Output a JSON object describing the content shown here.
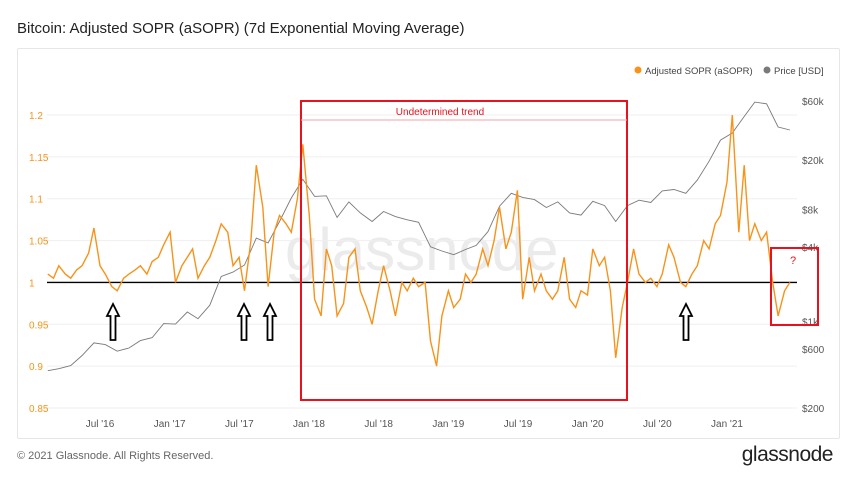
{
  "title": "Bitcoin: Adjusted SOPR (aSOPR) (7d Exponential Moving Average)",
  "footer": "© 2021 Glassnode. All Rights Reserved.",
  "logo": "glassnode",
  "watermark": "glassnode",
  "annotations": {
    "box_label": "Undetermined trend",
    "question": "?",
    "color": "#e8121e"
  },
  "chart_data": {
    "type": "line",
    "legend_position": "top-right",
    "grid": true,
    "reference_line": 1,
    "x_ticks": [
      "Jul '16",
      "Jan '17",
      "Jul '17",
      "Jan '18",
      "Jul '18",
      "Jan '19",
      "Jul '19",
      "Jan '20",
      "Jul '20",
      "Jan '21"
    ],
    "y_left": {
      "ticks": [
        "1.2",
        "1.15",
        "1.1",
        "1.05",
        "1",
        "0.95",
        "0.9",
        "0.85"
      ],
      "range": [
        0.85,
        1.2
      ],
      "color": "#f7931a"
    },
    "y_right": {
      "scale": "log",
      "ticks": [
        "$60k",
        "$20k",
        "$8k",
        "$4k",
        "$1k",
        "$600",
        "$200"
      ],
      "range": [
        200,
        60000
      ]
    },
    "series": [
      {
        "name": "Adjusted SOPR (aSOPR)",
        "color": "#f7931a",
        "axis": "left",
        "points": [
          [
            "2016-02-15",
            1.01
          ],
          [
            "2016-03-01",
            1.005
          ],
          [
            "2016-03-15",
            1.02
          ],
          [
            "2016-04-01",
            1.01
          ],
          [
            "2016-04-15",
            1.005
          ],
          [
            "2016-05-01",
            1.015
          ],
          [
            "2016-05-15",
            1.02
          ],
          [
            "2016-06-01",
            1.035
          ],
          [
            "2016-06-15",
            1.065
          ],
          [
            "2016-07-01",
            1.02
          ],
          [
            "2016-07-15",
            1.01
          ],
          [
            "2016-08-01",
            0.995
          ],
          [
            "2016-08-15",
            0.99
          ],
          [
            "2016-09-01",
            1.005
          ],
          [
            "2016-09-15",
            1.01
          ],
          [
            "2016-10-01",
            1.015
          ],
          [
            "2016-10-15",
            1.02
          ],
          [
            "2016-11-01",
            1.01
          ],
          [
            "2016-11-15",
            1.025
          ],
          [
            "2016-12-01",
            1.03
          ],
          [
            "2016-12-15",
            1.045
          ],
          [
            "2017-01-01",
            1.06
          ],
          [
            "2017-01-15",
            1.0
          ],
          [
            "2017-02-01",
            1.02
          ],
          [
            "2017-02-15",
            1.03
          ],
          [
            "2017-03-01",
            1.04
          ],
          [
            "2017-03-15",
            1.005
          ],
          [
            "2017-04-01",
            1.02
          ],
          [
            "2017-04-15",
            1.03
          ],
          [
            "2017-05-01",
            1.05
          ],
          [
            "2017-05-15",
            1.07
          ],
          [
            "2017-06-01",
            1.06
          ],
          [
            "2017-06-15",
            1.02
          ],
          [
            "2017-07-01",
            1.03
          ],
          [
            "2017-07-15",
            0.99
          ],
          [
            "2017-08-01",
            1.05
          ],
          [
            "2017-08-15",
            1.14
          ],
          [
            "2017-09-01",
            1.09
          ],
          [
            "2017-09-15",
            0.995
          ],
          [
            "2017-10-01",
            1.06
          ],
          [
            "2017-10-15",
            1.08
          ],
          [
            "2017-11-01",
            1.07
          ],
          [
            "2017-11-15",
            1.06
          ],
          [
            "2017-12-01",
            1.1
          ],
          [
            "2017-12-15",
            1.165
          ],
          [
            "2018-01-01",
            1.08
          ],
          [
            "2018-01-15",
            0.98
          ],
          [
            "2018-02-01",
            0.96
          ],
          [
            "2018-02-15",
            1.04
          ],
          [
            "2018-03-01",
            1.02
          ],
          [
            "2018-03-15",
            0.96
          ],
          [
            "2018-04-01",
            0.975
          ],
          [
            "2018-04-15",
            1.03
          ],
          [
            "2018-05-01",
            1.04
          ],
          [
            "2018-05-15",
            0.99
          ],
          [
            "2018-06-01",
            0.97
          ],
          [
            "2018-06-15",
            0.95
          ],
          [
            "2018-07-01",
            0.99
          ],
          [
            "2018-07-15",
            1.02
          ],
          [
            "2018-08-01",
            0.99
          ],
          [
            "2018-08-15",
            0.96
          ],
          [
            "2018-09-01",
            1.0
          ],
          [
            "2018-09-15",
            0.99
          ],
          [
            "2018-10-01",
            1.005
          ],
          [
            "2018-10-15",
            0.995
          ],
          [
            "2018-11-01",
            1.0
          ],
          [
            "2018-11-15",
            0.93
          ],
          [
            "2018-12-01",
            0.9
          ],
          [
            "2018-12-15",
            0.96
          ],
          [
            "2019-01-01",
            0.99
          ],
          [
            "2019-01-15",
            0.97
          ],
          [
            "2019-02-01",
            0.98
          ],
          [
            "2019-02-15",
            1.01
          ],
          [
            "2019-03-01",
            1.0
          ],
          [
            "2019-03-15",
            1.01
          ],
          [
            "2019-04-01",
            1.04
          ],
          [
            "2019-04-15",
            1.02
          ],
          [
            "2019-05-01",
            1.05
          ],
          [
            "2019-05-15",
            1.09
          ],
          [
            "2019-06-01",
            1.04
          ],
          [
            "2019-06-15",
            1.06
          ],
          [
            "2019-07-01",
            1.11
          ],
          [
            "2019-07-15",
            0.98
          ],
          [
            "2019-08-01",
            1.03
          ],
          [
            "2019-08-15",
            0.99
          ],
          [
            "2019-09-01",
            1.01
          ],
          [
            "2019-09-15",
            0.99
          ],
          [
            "2019-10-01",
            0.98
          ],
          [
            "2019-10-15",
            0.99
          ],
          [
            "2019-11-01",
            1.03
          ],
          [
            "2019-11-15",
            0.98
          ],
          [
            "2019-12-01",
            0.97
          ],
          [
            "2019-12-15",
            0.99
          ],
          [
            "2020-01-01",
            0.985
          ],
          [
            "2020-01-15",
            1.04
          ],
          [
            "2020-02-01",
            1.02
          ],
          [
            "2020-02-15",
            1.03
          ],
          [
            "2020-03-01",
            0.99
          ],
          [
            "2020-03-15",
            0.91
          ],
          [
            "2020-04-01",
            0.97
          ],
          [
            "2020-04-15",
            1.0
          ],
          [
            "2020-05-01",
            1.04
          ],
          [
            "2020-05-15",
            1.01
          ],
          [
            "2020-06-01",
            1.0
          ],
          [
            "2020-06-15",
            1.005
          ],
          [
            "2020-07-01",
            0.995
          ],
          [
            "2020-07-15",
            1.01
          ],
          [
            "2020-08-01",
            1.045
          ],
          [
            "2020-08-15",
            1.03
          ],
          [
            "2020-09-01",
            1.0
          ],
          [
            "2020-09-15",
            0.995
          ],
          [
            "2020-10-01",
            1.01
          ],
          [
            "2020-10-15",
            1.02
          ],
          [
            "2020-11-01",
            1.05
          ],
          [
            "2020-11-15",
            1.04
          ],
          [
            "2020-12-01",
            1.07
          ],
          [
            "2020-12-15",
            1.08
          ],
          [
            "2021-01-01",
            1.12
          ],
          [
            "2021-01-15",
            1.2
          ],
          [
            "2021-02-01",
            1.06
          ],
          [
            "2021-02-15",
            1.14
          ],
          [
            "2021-03-01",
            1.05
          ],
          [
            "2021-03-15",
            1.07
          ],
          [
            "2021-04-01",
            1.05
          ],
          [
            "2021-04-15",
            1.06
          ],
          [
            "2021-05-01",
            1.0
          ],
          [
            "2021-05-15",
            0.96
          ],
          [
            "2021-06-01",
            0.99
          ],
          [
            "2021-06-15",
            1.0
          ]
        ]
      },
      {
        "name": "Price [USD]",
        "color": "#7a7a7a",
        "axis": "right",
        "points": [
          [
            "2016-02-15",
            400
          ],
          [
            "2016-03-15",
            415
          ],
          [
            "2016-04-15",
            440
          ],
          [
            "2016-05-15",
            530
          ],
          [
            "2016-06-15",
            670
          ],
          [
            "2016-07-15",
            650
          ],
          [
            "2016-08-15",
            575
          ],
          [
            "2016-09-15",
            610
          ],
          [
            "2016-10-15",
            700
          ],
          [
            "2016-11-15",
            740
          ],
          [
            "2016-12-15",
            960
          ],
          [
            "2017-01-15",
            950
          ],
          [
            "2017-02-15",
            1190
          ],
          [
            "2017-03-15",
            1050
          ],
          [
            "2017-04-15",
            1350
          ],
          [
            "2017-05-15",
            2300
          ],
          [
            "2017-06-15",
            2500
          ],
          [
            "2017-07-15",
            2850
          ],
          [
            "2017-08-15",
            4700
          ],
          [
            "2017-09-15",
            4300
          ],
          [
            "2017-10-15",
            6400
          ],
          [
            "2017-11-15",
            9900
          ],
          [
            "2017-12-15",
            14000
          ],
          [
            "2018-01-15",
            10200
          ],
          [
            "2018-02-15",
            10300
          ],
          [
            "2018-03-15",
            6900
          ],
          [
            "2018-04-15",
            9200
          ],
          [
            "2018-05-15",
            7500
          ],
          [
            "2018-06-15",
            6400
          ],
          [
            "2018-07-15",
            7700
          ],
          [
            "2018-08-15",
            7000
          ],
          [
            "2018-09-15",
            6600
          ],
          [
            "2018-10-15",
            6300
          ],
          [
            "2018-11-15",
            4000
          ],
          [
            "2018-12-15",
            3700
          ],
          [
            "2019-01-15",
            3450
          ],
          [
            "2019-02-15",
            3800
          ],
          [
            "2019-03-15",
            4100
          ],
          [
            "2019-04-15",
            5300
          ],
          [
            "2019-05-15",
            8500
          ],
          [
            "2019-06-15",
            10800
          ],
          [
            "2019-07-15",
            10000
          ],
          [
            "2019-08-15",
            9600
          ],
          [
            "2019-09-15",
            8300
          ],
          [
            "2019-10-15",
            9200
          ],
          [
            "2019-11-15",
            7500
          ],
          [
            "2019-12-15",
            7200
          ],
          [
            "2020-01-15",
            9300
          ],
          [
            "2020-02-15",
            8600
          ],
          [
            "2020-03-15",
            6400
          ],
          [
            "2020-04-15",
            8600
          ],
          [
            "2020-05-15",
            9500
          ],
          [
            "2020-06-15",
            9100
          ],
          [
            "2020-07-15",
            11300
          ],
          [
            "2020-08-15",
            11600
          ],
          [
            "2020-09-15",
            10800
          ],
          [
            "2020-10-15",
            13800
          ],
          [
            "2020-11-15",
            19600
          ],
          [
            "2020-12-15",
            29000
          ],
          [
            "2021-01-15",
            33100
          ],
          [
            "2021-02-15",
            45000
          ],
          [
            "2021-03-15",
            58800
          ],
          [
            "2021-04-15",
            57000
          ],
          [
            "2021-05-15",
            37000
          ],
          [
            "2021-06-15",
            35000
          ]
        ]
      }
    ]
  }
}
